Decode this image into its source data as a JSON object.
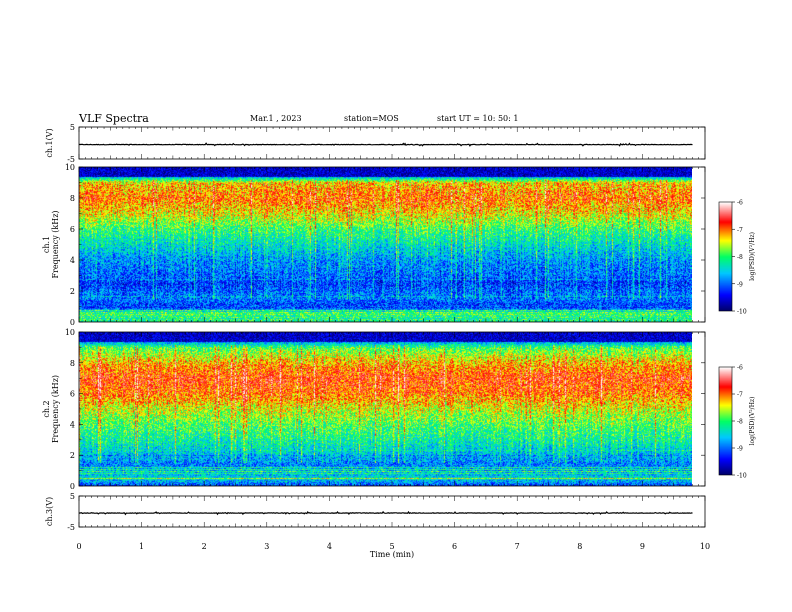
{
  "header": {
    "title": "VLF Spectra",
    "date": "Mar.1 , 2023",
    "station": "station=MOS",
    "start": "start UT = 10: 50: 1"
  },
  "chart_data": [
    {
      "type": "line",
      "panel": "ch1-waveform",
      "ylabel": "ch.1(V)",
      "ylim": [
        -5,
        5
      ],
      "yticks": [
        "5",
        "-5"
      ],
      "xlim": [
        0,
        10
      ],
      "series": [
        {
          "x": [
            0,
            9.8
          ],
          "values": [
            -0.5,
            -0.5
          ]
        }
      ]
    },
    {
      "type": "heatmap",
      "panel": "ch1-spectrogram",
      "ylabel": "ch.1 Frequency (kHz)",
      "ylim": [
        0,
        10
      ],
      "yticks": [
        "0",
        "2",
        "4",
        "6",
        "8",
        "10"
      ],
      "xlim": [
        0,
        10
      ],
      "data_end_min": 9.8,
      "freq_profile_khz": [
        0,
        0.5,
        1,
        1.5,
        2,
        2.5,
        3,
        4,
        5,
        6,
        7,
        8,
        9,
        9.5,
        10
      ],
      "log_psd_profile": [
        -8.2,
        -7.8,
        -9.3,
        -8.9,
        -9.0,
        -9.2,
        -9.0,
        -8.8,
        -8.4,
        -8.0,
        -7.4,
        -7.0,
        -7.3,
        -9.0,
        -10.0
      ],
      "colorbar": {
        "label": "log(PSD)(V²/Hz)",
        "range": [
          -10,
          -6
        ],
        "ticks": [
          "-6",
          "-7",
          "-8",
          "-9",
          "-10"
        ]
      }
    },
    {
      "type": "heatmap",
      "panel": "ch2-spectrogram",
      "ylabel": "ch.2 Frequency (kHz)",
      "ylim": [
        0,
        10
      ],
      "yticks": [
        "0",
        "2",
        "4",
        "6",
        "8",
        "10"
      ],
      "xlim": [
        0,
        10
      ],
      "data_end_min": 9.8,
      "freq_profile_khz": [
        0,
        0.5,
        1,
        1.5,
        2,
        2.5,
        3,
        4,
        5,
        6,
        7,
        8,
        9,
        9.5,
        10
      ],
      "log_psd_profile": [
        -9.2,
        -8.4,
        -8.7,
        -8.9,
        -8.6,
        -8.4,
        -8.2,
        -7.9,
        -7.5,
        -7.0,
        -6.8,
        -7.2,
        -7.9,
        -9.0,
        -10.0
      ],
      "colorbar": {
        "label": "log(PSD)(V²/Hz)",
        "range": [
          -10,
          -6
        ],
        "ticks": [
          "-6",
          "-7",
          "-8",
          "-9",
          "-10"
        ]
      }
    },
    {
      "type": "line",
      "panel": "ch3-waveform",
      "ylabel": "ch.3(V)",
      "ylim": [
        -5,
        5
      ],
      "yticks": [
        "5",
        "-5"
      ],
      "xlim": [
        0,
        10
      ],
      "series": [
        {
          "x": [
            0,
            9.8
          ],
          "values": [
            -0.5,
            -0.5
          ]
        }
      ]
    }
  ],
  "xaxis": {
    "label": "Time (min)",
    "ticks": [
      "0",
      "1",
      "2",
      "3",
      "4",
      "5",
      "6",
      "7",
      "8",
      "9",
      "10"
    ]
  },
  "colors": {
    "colormap": [
      "#000064",
      "#0000ff",
      "#00c8ff",
      "#00ff64",
      "#ffff00",
      "#ff0000",
      "#ffffff"
    ],
    "waveform": "#000000"
  }
}
